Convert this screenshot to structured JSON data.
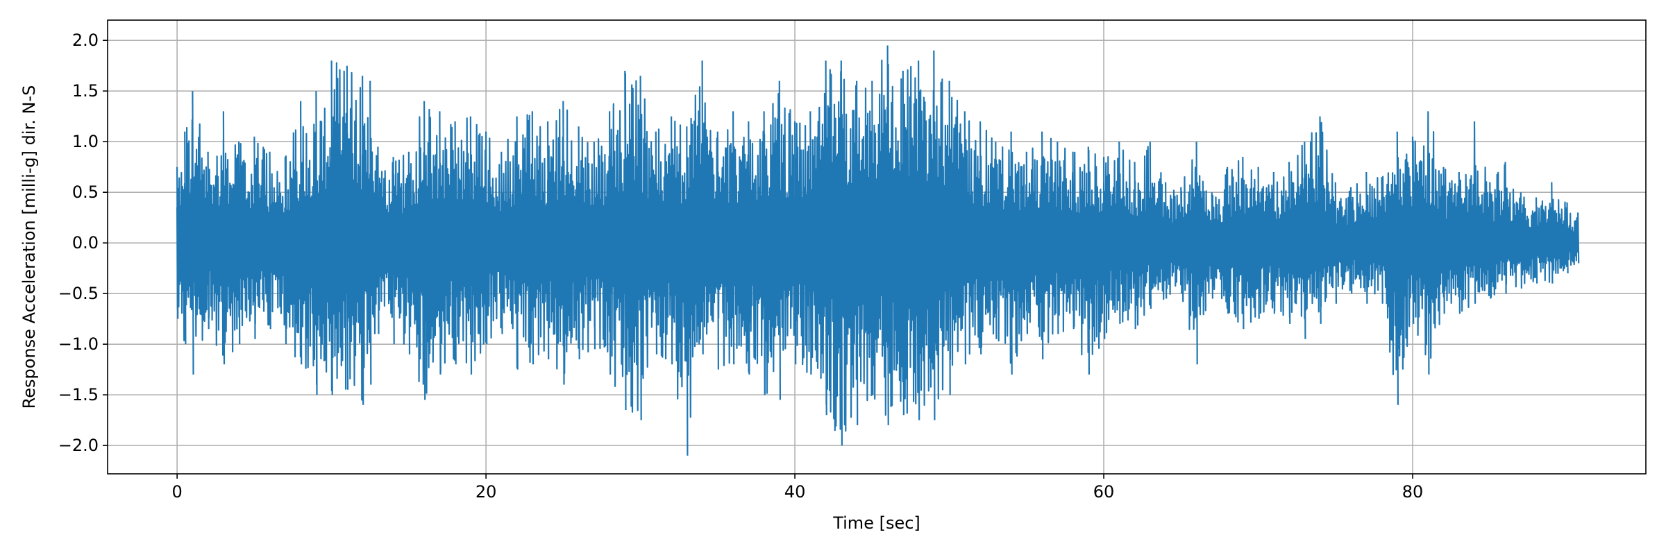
{
  "chart_data": {
    "type": "line",
    "title": "",
    "xlabel": "Time [sec]",
    "ylabel": "Response Acceleration [milli-g] dir. N-S",
    "xlim": [
      -4.5,
      95.1
    ],
    "ylim": [
      -2.28,
      2.2
    ],
    "x_ticks": [
      0,
      20,
      40,
      60,
      80
    ],
    "x_tick_labels": [
      "0",
      "20",
      "40",
      "60",
      "80"
    ],
    "y_ticks": [
      2.0,
      1.5,
      1.0,
      0.5,
      0.0,
      -0.5,
      -1.0,
      -1.5,
      -2.0
    ],
    "y_tick_labels": [
      "2.0",
      "1.5",
      "1.0",
      "0.5",
      "0.0",
      "−0.5",
      "−1.0",
      "−1.5",
      "−2.0"
    ],
    "grid": true,
    "line_color": "#1f77b4",
    "series": [
      {
        "x": [
          0,
          0.5,
          1,
          2,
          3,
          4,
          5,
          6,
          7,
          8,
          9,
          10,
          11,
          12,
          12.5,
          13,
          14,
          15,
          16,
          17,
          18,
          19,
          20,
          21,
          22,
          23,
          24,
          25,
          26,
          27,
          28,
          29,
          30,
          31,
          32,
          33,
          34,
          35,
          36,
          37,
          38,
          39,
          40,
          41,
          42,
          43,
          44,
          45,
          46,
          47,
          48,
          49,
          50,
          51,
          52,
          53,
          54,
          55,
          56,
          57,
          58,
          59,
          60,
          61,
          62,
          63,
          64,
          65,
          66,
          67,
          68,
          69,
          70,
          71,
          72,
          73,
          74,
          75,
          76,
          77,
          78,
          79,
          80,
          81,
          82,
          83,
          84,
          85,
          86,
          87,
          88,
          89,
          90,
          90.7
        ],
        "max": [
          0.75,
          1.1,
          1.5,
          0.9,
          1.3,
          1.0,
          1.05,
          0.9,
          0.85,
          1.4,
          1.5,
          1.8,
          1.75,
          1.65,
          1.6,
          0.95,
          0.85,
          0.9,
          1.4,
          1.3,
          1.2,
          1.25,
          1.1,
          0.9,
          1.25,
          1.3,
          1.2,
          1.4,
          1.15,
          1.0,
          1.3,
          1.7,
          1.65,
          1.1,
          1.25,
          1.15,
          1.8,
          1.1,
          1.3,
          1.2,
          1.3,
          1.6,
          1.2,
          1.3,
          1.8,
          1.8,
          1.6,
          1.6,
          1.95,
          1.7,
          1.8,
          1.9,
          1.6,
          1.3,
          1.2,
          1.0,
          1.1,
          0.9,
          1.1,
          1.0,
          0.9,
          0.95,
          0.85,
          1.0,
          0.8,
          1.0,
          0.6,
          0.55,
          1.0,
          0.5,
          0.75,
          0.85,
          0.75,
          0.7,
          0.8,
          1.0,
          1.25,
          0.6,
          0.55,
          0.7,
          0.65,
          1.1,
          1.05,
          1.3,
          0.75,
          0.7,
          1.2,
          0.6,
          0.8,
          0.5,
          0.45,
          0.6,
          0.4,
          0.3
        ],
        "min": [
          -0.75,
          -1.0,
          -1.3,
          -0.85,
          -1.2,
          -1.0,
          -0.95,
          -0.85,
          -1.0,
          -1.2,
          -1.5,
          -1.5,
          -1.45,
          -1.6,
          -1.4,
          -0.9,
          -1.0,
          -1.1,
          -1.55,
          -1.3,
          -1.2,
          -1.3,
          -1.0,
          -0.9,
          -1.25,
          -1.2,
          -1.15,
          -1.4,
          -1.15,
          -1.05,
          -1.3,
          -1.65,
          -1.75,
          -1.1,
          -1.2,
          -2.1,
          -1.1,
          -1.25,
          -1.2,
          -1.3,
          -1.5,
          -1.55,
          -1.2,
          -1.3,
          -1.7,
          -2.0,
          -1.8,
          -1.5,
          -1.8,
          -1.7,
          -1.75,
          -1.75,
          -1.5,
          -1.2,
          -1.1,
          -0.95,
          -1.3,
          -0.9,
          -1.15,
          -0.9,
          -0.85,
          -1.3,
          -0.95,
          -0.8,
          -0.85,
          -0.65,
          -0.55,
          -0.5,
          -1.2,
          -0.55,
          -0.7,
          -0.85,
          -0.75,
          -0.7,
          -0.8,
          -0.95,
          -0.8,
          -0.6,
          -0.5,
          -0.6,
          -0.6,
          -1.6,
          -0.8,
          -1.3,
          -0.7,
          -0.7,
          -0.6,
          -0.55,
          -0.5,
          -0.45,
          -0.4,
          -0.4,
          -0.3,
          -0.2
        ]
      }
    ]
  }
}
